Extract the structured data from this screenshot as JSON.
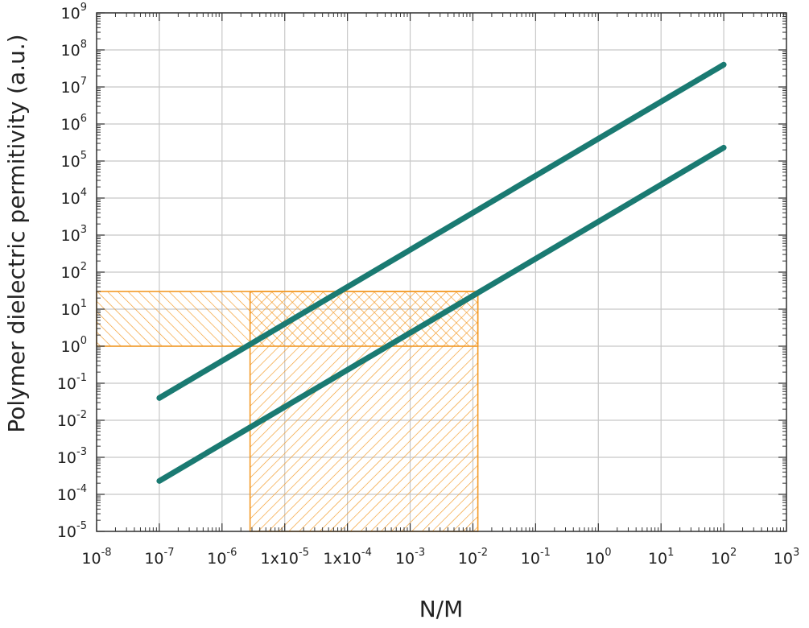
{
  "chart_data": {
    "type": "line",
    "xlabel": "N/M",
    "ylabel": "Polymer dielectric permitivity (a.u.)",
    "x_scale": "log",
    "y_scale": "log",
    "xlim": [
      1e-08,
      1000
    ],
    "ylim": [
      1e-05,
      1000000000.0
    ],
    "grid": true,
    "x_ticks": [
      {
        "value": 1e-08,
        "base": "10",
        "exp": "-8"
      },
      {
        "value": 1e-07,
        "base": "10",
        "exp": "-7"
      },
      {
        "value": 1e-06,
        "base": "10",
        "exp": "-6"
      },
      {
        "value": 1e-05,
        "base": "1x10",
        "exp": "-5"
      },
      {
        "value": 0.0001,
        "base": "1x10",
        "exp": "-4"
      },
      {
        "value": 0.001,
        "base": "10",
        "exp": "-3"
      },
      {
        "value": 0.01,
        "base": "10",
        "exp": "-2"
      },
      {
        "value": 0.1,
        "base": "10",
        "exp": "-1"
      },
      {
        "value": 1,
        "base": "10",
        "exp": "0"
      },
      {
        "value": 10,
        "base": "10",
        "exp": "1"
      },
      {
        "value": 100,
        "base": "10",
        "exp": "2"
      },
      {
        "value": 1000,
        "base": "10",
        "exp": "3"
      }
    ],
    "y_ticks": [
      {
        "value": 1e-05,
        "base": "10",
        "exp": "-5"
      },
      {
        "value": 0.0001,
        "base": "10",
        "exp": "-4"
      },
      {
        "value": 0.001,
        "base": "10",
        "exp": "-3"
      },
      {
        "value": 0.01,
        "base": "10",
        "exp": "-2"
      },
      {
        "value": 0.1,
        "base": "10",
        "exp": "-1"
      },
      {
        "value": 1,
        "base": "10",
        "exp": "0"
      },
      {
        "value": 10,
        "base": "10",
        "exp": "1"
      },
      {
        "value": 100,
        "base": "10",
        "exp": "2"
      },
      {
        "value": 1000,
        "base": "10",
        "exp": "3"
      },
      {
        "value": 10000,
        "base": "10",
        "exp": "4"
      },
      {
        "value": 100000,
        "base": "10",
        "exp": "5"
      },
      {
        "value": 1000000,
        "base": "10",
        "exp": "6"
      },
      {
        "value": 10000000,
        "base": "10",
        "exp": "7"
      },
      {
        "value": 100000000,
        "base": "10",
        "exp": "8"
      },
      {
        "value": 1000000000,
        "base": "10",
        "exp": "9"
      }
    ],
    "series": [
      {
        "x": [
          1e-07,
          100
        ],
        "y": [
          0.04,
          40000000
        ],
        "color": "#1a7a72"
      },
      {
        "x": [
          1e-07,
          100
        ],
        "y": [
          0.00023,
          230000
        ],
        "color": "#1a7a72"
      }
    ],
    "regions": [
      {
        "x": [
          1e-08,
          0.012
        ],
        "y": [
          1,
          30
        ],
        "hatch": "forward",
        "color": "#f39a27"
      },
      {
        "x": [
          2.8e-06,
          0.012
        ],
        "y": [
          1e-05,
          30
        ],
        "hatch": "backward",
        "color": "#f39a27"
      }
    ]
  }
}
